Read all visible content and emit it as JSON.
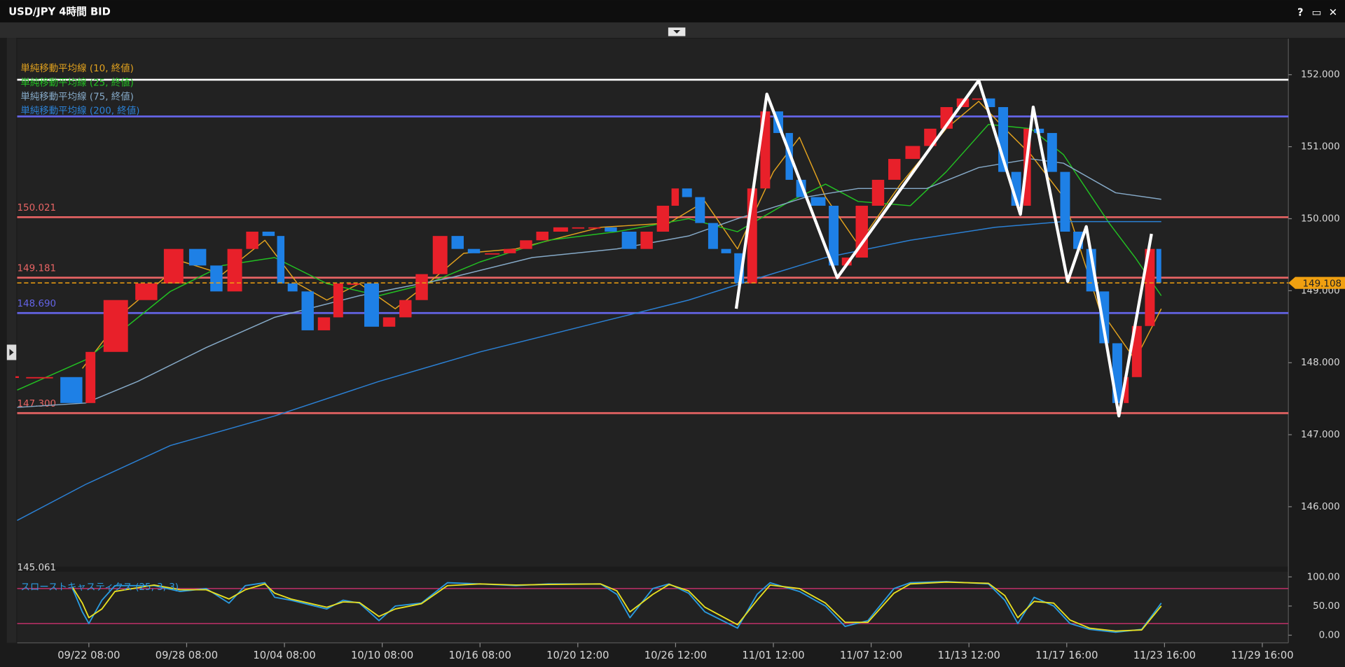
{
  "window_buttons": [
    "?",
    "▭",
    "✕"
  ],
  "chart_data": [
    {
      "type": "candlestick",
      "title": "USD/JPY 4時間 BID",
      "x": [
        0,
        11,
        20,
        24,
        34,
        43,
        51,
        58,
        63,
        69,
        74,
        79,
        82,
        86,
        91,
        96,
        100,
        105,
        111,
        116,
        121,
        126,
        132,
        137,
        142,
        148,
        153,
        158,
        163,
        169,
        174,
        179,
        184,
        190,
        195,
        200,
        203,
        207,
        211,
        215,
        219,
        223,
        227,
        231,
        235,
        238,
        242,
        248,
        252,
        256,
        261,
        266,
        271,
        277,
        282,
        287,
        292,
        296,
        300,
        304,
        308,
        311,
        315,
        319,
        323,
        327,
        331,
        335,
        339,
        341,
        345,
        349,
        351
      ],
      "close": [
        147.8,
        147.8,
        147.44,
        148.15,
        148.87,
        149.1,
        149.58,
        149.35,
        148.99,
        149.58,
        149.82,
        149.76,
        149.1,
        148.99,
        148.45,
        148.63,
        149.1,
        149.1,
        148.5,
        148.63,
        148.87,
        149.23,
        149.76,
        149.58,
        149.52,
        149.52,
        149.58,
        149.7,
        149.82,
        149.88,
        149.88,
        149.88,
        149.82,
        149.58,
        149.82,
        150.18,
        150.42,
        150.3,
        149.94,
        149.58,
        149.52,
        149.1,
        150.42,
        151.49,
        151.19,
        150.54,
        150.3,
        150.18,
        149.35,
        149.46,
        150.18,
        150.54,
        150.83,
        151.01,
        151.25,
        151.55,
        151.67,
        151.67,
        151.55,
        150.65,
        150.18,
        151.25,
        151.19,
        150.65,
        149.82,
        149.58,
        148.99,
        148.27,
        147.44,
        147.8,
        148.51,
        149.58,
        149.11
      ],
      "up_color": "#e8202a",
      "down_color": "#1e80e6",
      "xlim": [
        0,
        390
      ],
      "xticks": [
        {
          "value": 22,
          "label": "09/22 08:00"
        },
        {
          "value": 52,
          "label": "09/28 08:00"
        },
        {
          "value": 82,
          "label": "10/04 08:00"
        },
        {
          "value": 112,
          "label": "10/10 08:00"
        },
        {
          "value": 142,
          "label": "10/16 08:00"
        },
        {
          "value": 172,
          "label": "10/20 12:00"
        },
        {
          "value": 202,
          "label": "10/26 12:00"
        },
        {
          "value": 232,
          "label": "11/01 12:00"
        },
        {
          "value": 262,
          "label": "11/07 12:00"
        },
        {
          "value": 292,
          "label": "11/13 12:00"
        },
        {
          "value": 322,
          "label": "11/17 16:00"
        },
        {
          "value": 352,
          "label": "11/23 16:00"
        },
        {
          "value": 382,
          "label": "11/29 16:00"
        }
      ],
      "ylim": [
        145.18,
        152.5
      ],
      "yticks": [
        {
          "value": 146,
          "label": "146.000"
        },
        {
          "value": 147,
          "label": "147.000"
        },
        {
          "value": 148,
          "label": "148.000"
        },
        {
          "value": 149,
          "label": "149.000"
        },
        {
          "value": 150,
          "label": "150.000"
        },
        {
          "value": 151,
          "label": "151.000"
        },
        {
          "value": 152,
          "label": "152.000"
        }
      ],
      "min_label": "145.061",
      "series": [
        {
          "name": "単純移動平均線 (10, 終値)",
          "color": "#e2a21e",
          "x": [
            20,
            34,
            51,
            63,
            76,
            86,
            95,
            105,
            116,
            126,
            137,
            153,
            179,
            200,
            211,
            221,
            232,
            240,
            248,
            258,
            271,
            285,
            295,
            303,
            311,
            321,
            332,
            343,
            351
          ],
          "values": [
            147.92,
            148.75,
            149.4,
            149.23,
            149.7,
            149.1,
            148.87,
            149.1,
            148.75,
            149.1,
            149.52,
            149.58,
            149.88,
            149.94,
            150.24,
            149.58,
            150.65,
            151.13,
            150.3,
            149.64,
            150.48,
            151.25,
            151.63,
            151.25,
            150.89,
            150.3,
            148.75,
            148.04,
            148.75
          ]
        },
        {
          "name": "単純移動平均線 (25, 終値)",
          "color": "#22c022",
          "x": [
            0,
            21,
            47,
            63,
            79,
            95,
            111,
            126,
            142,
            163,
            184,
            206,
            221,
            237,
            248,
            258,
            274,
            285,
            298,
            311,
            321,
            335,
            343,
            351
          ],
          "values": [
            147.62,
            148.04,
            148.99,
            149.35,
            149.46,
            149.1,
            148.93,
            149.1,
            149.4,
            149.7,
            149.82,
            150.0,
            149.82,
            150.24,
            150.48,
            150.24,
            150.18,
            150.65,
            151.31,
            151.25,
            150.89,
            149.94,
            149.46,
            148.93
          ]
        },
        {
          "name": "単純移動平均線 (75, 終値)",
          "color": "#86aac8",
          "x": [
            0,
            21,
            37,
            58,
            79,
            105,
            132,
            158,
            184,
            206,
            221,
            242,
            258,
            279,
            295,
            311,
            321,
            337,
            351
          ],
          "values": [
            147.38,
            147.44,
            147.74,
            148.21,
            148.63,
            148.93,
            149.17,
            149.46,
            149.58,
            149.76,
            150.0,
            150.3,
            150.42,
            150.42,
            150.71,
            150.83,
            150.77,
            150.36,
            150.27
          ]
        },
        {
          "name": "単純移動平均線 (200, 終値)",
          "color": "#2b80d4",
          "x": [
            0,
            21,
            47,
            79,
            111,
            142,
            174,
            206,
            227,
            248,
            274,
            300,
            321,
            337,
            351
          ],
          "values": [
            145.81,
            146.31,
            146.85,
            147.26,
            147.74,
            148.15,
            148.51,
            148.87,
            149.17,
            149.46,
            149.7,
            149.88,
            149.96,
            149.96,
            149.96
          ]
        }
      ],
      "levels": [
        {
          "value": 151.93,
          "color": "#ffffff"
        },
        {
          "value": 151.42,
          "color": "#6464e6"
        },
        {
          "value": 150.021,
          "color": "#e86464",
          "show_label": true
        },
        {
          "value": 149.181,
          "color": "#e86464",
          "show_label": true
        },
        {
          "value": 148.69,
          "label": "148.690",
          "color": "#6464e6"
        },
        {
          "value": 147.3,
          "label": "147.300",
          "color": "#e86464"
        }
      ],
      "current_price": {
        "value": 149.108,
        "color": "#f0a010"
      },
      "zigzag": {
        "color": "#ffffff",
        "x": [
          220.6,
          230,
          251.6,
          295,
          307.8,
          311.7,
          322.3,
          328,
          338,
          348
        ],
        "values": [
          148.75,
          151.73,
          149.18,
          151.92,
          150.06,
          151.55,
          149.13,
          149.89,
          147.26,
          149.79
        ]
      }
    },
    {
      "type": "line",
      "title": "スローストキャスティクス (25, 3, 3)",
      "ylim": [
        0,
        100
      ],
      "yticks": [
        {
          "value": 0,
          "label": "0.00"
        },
        {
          "value": 50,
          "label": "50.00"
        },
        {
          "value": 100,
          "label": "100.00"
        }
      ],
      "levels": [
        {
          "value": 20,
          "color": "#c0306a"
        },
        {
          "value": 80,
          "color": "#c0306a"
        }
      ],
      "x": [
        17,
        20,
        22,
        26,
        30,
        42,
        50,
        58,
        65,
        70,
        76,
        79,
        84,
        95,
        100,
        105,
        111,
        116,
        124,
        132,
        142,
        153,
        163,
        179,
        184,
        188,
        195,
        200,
        206,
        211,
        221,
        227,
        231,
        240,
        248,
        254,
        261,
        269,
        274,
        285,
        298,
        303,
        307,
        312,
        318,
        323,
        329,
        337,
        345,
        351
      ],
      "series": [
        {
          "color": "#2a9be0",
          "values": [
            80,
            40,
            20,
            60,
            85,
            85,
            75,
            80,
            55,
            85,
            90,
            65,
            60,
            45,
            60,
            55,
            25,
            50,
            55,
            90,
            88,
            85,
            88,
            88,
            70,
            30,
            80,
            88,
            72,
            40,
            12,
            70,
            90,
            75,
            50,
            15,
            25,
            80,
            90,
            92,
            88,
            60,
            20,
            65,
            50,
            20,
            10,
            5,
            10,
            55
          ]
        },
        {
          "color": "#e8e020",
          "values": [
            82,
            55,
            30,
            45,
            75,
            86,
            78,
            78,
            62,
            78,
            88,
            72,
            62,
            48,
            57,
            56,
            32,
            45,
            54,
            85,
            88,
            86,
            87,
            88,
            76,
            40,
            70,
            87,
            76,
            48,
            18,
            60,
            86,
            80,
            55,
            22,
            22,
            72,
            88,
            91,
            89,
            68,
            30,
            58,
            55,
            26,
            12,
            7,
            9,
            50
          ]
        }
      ]
    }
  ]
}
